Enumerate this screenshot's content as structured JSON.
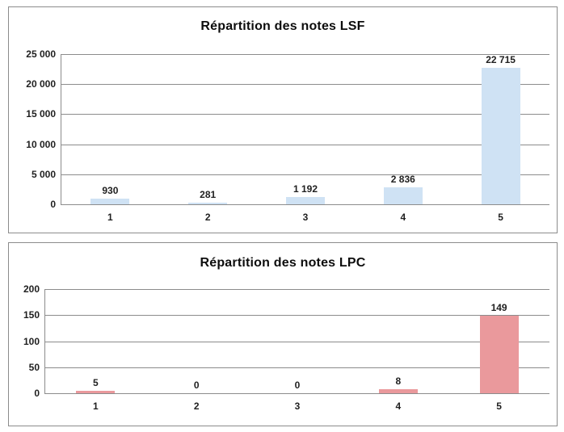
{
  "colors": {
    "background": "#ffffff",
    "panel_border": "#8c8c8c",
    "gridline": "#8c8c8c",
    "axis_line": "#8c8c8c",
    "text": "#1f1f1f",
    "lsf_bar_fill": "#cfe2f4",
    "lpc_bar_fill": "#ea999c"
  },
  "chart_data": [
    {
      "type": "bar",
      "title": "Répartition des notes LSF",
      "categories": [
        "1",
        "2",
        "3",
        "4",
        "5"
      ],
      "values": [
        930,
        281,
        1192,
        2836,
        22715
      ],
      "value_labels": [
        "930",
        "281",
        "1 192",
        "2 836",
        "22 715"
      ],
      "xlabel": "",
      "ylabel": "",
      "ylim": [
        0,
        25000
      ],
      "y_ticks": [
        25000,
        20000,
        15000,
        10000,
        5000,
        0
      ],
      "y_tick_labels": [
        "25 000",
        "20 000",
        "15 000",
        "10 000",
        "5 000",
        "0"
      ],
      "grid": true,
      "legend_position": "none",
      "bar_color": "#cfe2f4"
    },
    {
      "type": "bar",
      "title": "Répartition des notes LPC",
      "categories": [
        "1",
        "2",
        "3",
        "4",
        "5"
      ],
      "values": [
        5,
        0,
        0,
        8,
        149
      ],
      "value_labels": [
        "5",
        "0",
        "0",
        "8",
        "149"
      ],
      "xlabel": "",
      "ylabel": "",
      "ylim": [
        0,
        200
      ],
      "y_ticks": [
        200,
        150,
        100,
        50,
        0
      ],
      "y_tick_labels": [
        "200",
        "150",
        "100",
        "50",
        "0"
      ],
      "grid": true,
      "legend_position": "none",
      "bar_color": "#ea999c"
    }
  ]
}
